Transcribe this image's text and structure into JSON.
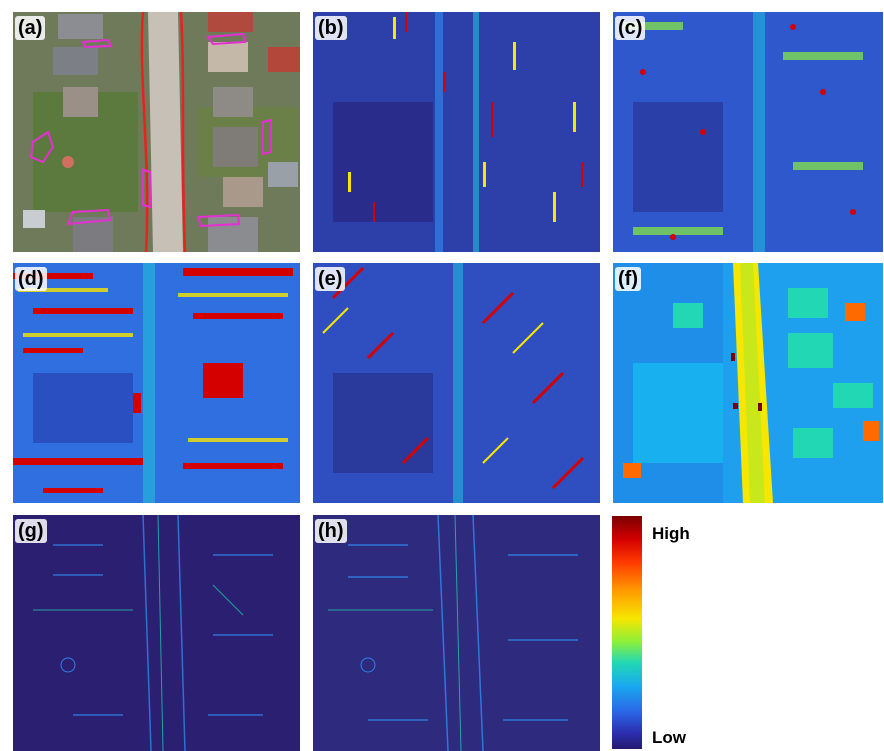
{
  "panels": [
    {
      "label": "(a)",
      "kind": "aerial"
    },
    {
      "label": "(b)",
      "kind": "heatmap-sparse"
    },
    {
      "label": "(c)",
      "kind": "heatmap-dense"
    },
    {
      "label": "(d)",
      "kind": "heatmap-hot"
    },
    {
      "label": "(e)",
      "kind": "heatmap-diagonal"
    },
    {
      "label": "(f)",
      "kind": "height-map"
    },
    {
      "label": "(g)",
      "kind": "edge-map"
    },
    {
      "label": "(h)",
      "kind": "edge-map"
    }
  ],
  "legend": {
    "high_label": "High",
    "low_label": "Low"
  },
  "colors": {
    "low": "#241a6d",
    "mid": "#22d8b4",
    "high": "#7a0000",
    "road_outline": "#e8231d",
    "object_outline": "#e62fd3"
  }
}
